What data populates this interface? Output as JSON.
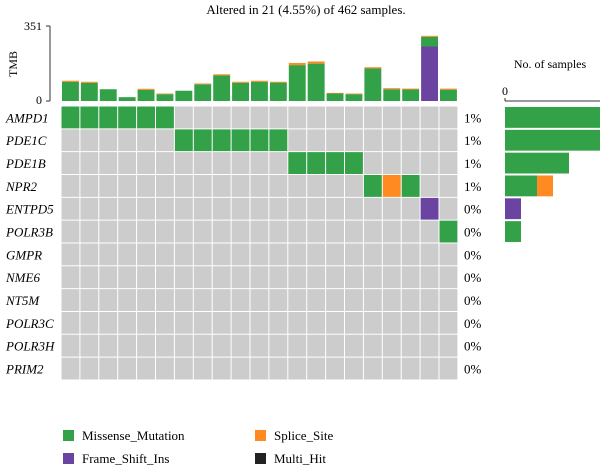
{
  "chart_data": {
    "type": "heatmap",
    "title": "Altered in 21 (4.55%) of 462 samples.",
    "tmb": {
      "label": "TMB",
      "tick_max": "351",
      "tick_min": "0",
      "ylim": [
        0,
        351
      ]
    },
    "side_bar": {
      "label": "No. of samples",
      "tick": "0"
    },
    "genes": [
      "AMPD1",
      "PDE1C",
      "PDE1B",
      "NPR2",
      "ENTPD5",
      "POLR3B",
      "GMPR",
      "NME6",
      "NT5M",
      "POLR3C",
      "POLR3H",
      "PRIM2"
    ],
    "percentages": [
      "1%",
      "1%",
      "1%",
      "1%",
      "0%",
      "0%",
      "0%",
      "0%",
      "0%",
      "0%",
      "0%",
      "0%"
    ],
    "n_samples": 21,
    "tmb_values": [
      {
        "total": 95,
        "parts": {
          "Missense_Mutation": 90,
          "Splice_Site": 5
        }
      },
      {
        "total": 90,
        "parts": {
          "Missense_Mutation": 85,
          "Splice_Site": 5
        }
      },
      {
        "total": 55,
        "parts": {
          "Missense_Mutation": 55
        }
      },
      {
        "total": 18,
        "parts": {
          "Missense_Mutation": 18
        }
      },
      {
        "total": 57,
        "parts": {
          "Missense_Mutation": 52,
          "Splice_Site": 5
        }
      },
      {
        "total": 35,
        "parts": {
          "Missense_Mutation": 32,
          "Splice_Site": 3
        }
      },
      {
        "total": 48,
        "parts": {
          "Missense_Mutation": 48
        }
      },
      {
        "total": 82,
        "parts": {
          "Missense_Mutation": 78,
          "Splice_Site": 4
        }
      },
      {
        "total": 125,
        "parts": {
          "Missense_Mutation": 120,
          "Splice_Site": 5
        }
      },
      {
        "total": 90,
        "parts": {
          "Missense_Mutation": 85,
          "Splice_Site": 5
        }
      },
      {
        "total": 95,
        "parts": {
          "Missense_Mutation": 90,
          "Splice_Site": 5
        }
      },
      {
        "total": 90,
        "parts": {
          "Missense_Mutation": 86,
          "Splice_Site": 4
        }
      },
      {
        "total": 178,
        "parts": {
          "Missense_Mutation": 168,
          "Splice_Site": 10
        }
      },
      {
        "total": 185,
        "parts": {
          "Missense_Mutation": 175,
          "Splice_Site": 10
        }
      },
      {
        "total": 38,
        "parts": {
          "Missense_Mutation": 35,
          "Splice_Site": 3
        }
      },
      {
        "total": 35,
        "parts": {
          "Missense_Mutation": 32,
          "Splice_Site": 3
        }
      },
      {
        "total": 158,
        "parts": {
          "Missense_Mutation": 152,
          "Splice_Site": 6
        }
      },
      {
        "total": 60,
        "parts": {
          "Missense_Mutation": 55,
          "Splice_Site": 5
        }
      },
      {
        "total": 58,
        "parts": {
          "Missense_Mutation": 54,
          "Splice_Site": 4
        }
      },
      {
        "total": 305,
        "parts": {
          "Frame_Shift_Ins": 255,
          "Missense_Mutation": 45,
          "Splice_Site": 5
        }
      },
      {
        "total": 58,
        "parts": {
          "Missense_Mutation": 53,
          "Splice_Site": 5
        }
      }
    ],
    "alterations": [
      {
        "gene": 0,
        "sample": 0,
        "type": "Missense_Mutation"
      },
      {
        "gene": 0,
        "sample": 1,
        "type": "Missense_Mutation"
      },
      {
        "gene": 0,
        "sample": 2,
        "type": "Missense_Mutation"
      },
      {
        "gene": 0,
        "sample": 3,
        "type": "Missense_Mutation"
      },
      {
        "gene": 0,
        "sample": 4,
        "type": "Missense_Mutation"
      },
      {
        "gene": 0,
        "sample": 5,
        "type": "Missense_Mutation"
      },
      {
        "gene": 1,
        "sample": 6,
        "type": "Missense_Mutation"
      },
      {
        "gene": 1,
        "sample": 7,
        "type": "Missense_Mutation"
      },
      {
        "gene": 1,
        "sample": 8,
        "type": "Missense_Mutation"
      },
      {
        "gene": 1,
        "sample": 9,
        "type": "Missense_Mutation"
      },
      {
        "gene": 1,
        "sample": 10,
        "type": "Missense_Mutation"
      },
      {
        "gene": 1,
        "sample": 11,
        "type": "Missense_Mutation"
      },
      {
        "gene": 2,
        "sample": 12,
        "type": "Missense_Mutation"
      },
      {
        "gene": 2,
        "sample": 13,
        "type": "Missense_Mutation"
      },
      {
        "gene": 2,
        "sample": 14,
        "type": "Missense_Mutation"
      },
      {
        "gene": 2,
        "sample": 15,
        "type": "Missense_Mutation"
      },
      {
        "gene": 3,
        "sample": 16,
        "type": "Missense_Mutation"
      },
      {
        "gene": 3,
        "sample": 17,
        "type": "Splice_Site"
      },
      {
        "gene": 3,
        "sample": 18,
        "type": "Missense_Mutation"
      },
      {
        "gene": 4,
        "sample": 19,
        "type": "Frame_Shift_Ins"
      },
      {
        "gene": 5,
        "sample": 20,
        "type": "Missense_Mutation"
      }
    ],
    "gene_counts": [
      {
        "Missense_Mutation": 6
      },
      {
        "Missense_Mutation": 6
      },
      {
        "Missense_Mutation": 4
      },
      {
        "Missense_Mutation": 2,
        "Splice_Site": 1
      },
      {
        "Frame_Shift_Ins": 1
      },
      {
        "Missense_Mutation": 1
      },
      {},
      {},
      {},
      {},
      {},
      {}
    ],
    "legend": [
      {
        "label": "Missense_Mutation",
        "color": "#33a148"
      },
      {
        "label": "Splice_Site",
        "color": "#ff8a22"
      },
      {
        "label": "Frame_Shift_Ins",
        "color": "#6b44a2"
      },
      {
        "label": "Multi_Hit",
        "color": "#222222"
      }
    ],
    "empty_color": "#cccccc",
    "grid": true,
    "legend_position": "bottom"
  }
}
